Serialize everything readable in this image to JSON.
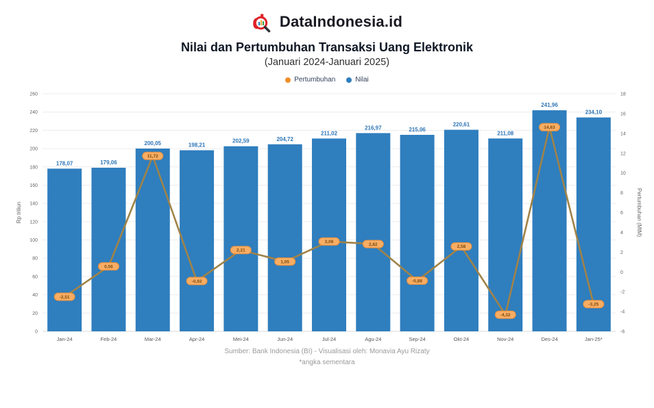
{
  "header": {
    "brand": "DataIndonesia.id",
    "title": "Nilai dan Pertumbuhan Transaksi Uang Elektronik",
    "subtitle": "(Januari 2024-Januari 2025)"
  },
  "legend": [
    {
      "label": "Pertumbuhan",
      "color": "#f28e2b"
    },
    {
      "label": "Nilai",
      "color": "#2f7ebe"
    }
  ],
  "colors": {
    "bar": "#2f7ebe",
    "bar_label": "#2e75b6",
    "line": "#a08348",
    "marker_fill": "#f9ad63",
    "marker_stroke": "#e88f3c",
    "marker_text": "#7a4d12",
    "axis_text": "#666666",
    "grid": "#ececec",
    "baseline": "#d9d9d9",
    "brand_red": "#e02127"
  },
  "chart_data": {
    "type": "bar",
    "subtype": "bar+line dual-axis",
    "categories": [
      "Jan-24",
      "Feb-24",
      "Mar-24",
      "Apr-24",
      "Mei-24",
      "Jun-24",
      "Jul-24",
      "Agu-24",
      "Sep-24",
      "Okt-24",
      "Nov-24",
      "Des-24",
      "Jan-25*"
    ],
    "series": [
      {
        "name": "Nilai",
        "type": "bar",
        "axis": "left",
        "unit": "Rp triliun",
        "values": [
          178.07,
          179.06,
          200.05,
          198.21,
          202.59,
          204.72,
          211.02,
          216.97,
          215.06,
          220.61,
          211.08,
          241.96,
          234.1
        ],
        "labels": [
          "178,07",
          "179,06",
          "200,05",
          "198,21",
          "202,59",
          "204,72",
          "211,02",
          "216,97",
          "215,06",
          "220,61",
          "211,08",
          "241,96",
          "234,10"
        ]
      },
      {
        "name": "Pertumbuhan",
        "type": "line",
        "axis": "right",
        "unit": "% (MtM)",
        "values": [
          -2.51,
          0.56,
          11.72,
          -0.92,
          2.21,
          1.05,
          3.08,
          2.82,
          -0.88,
          2.58,
          -4.32,
          14.63,
          -3.25
        ],
        "labels": [
          "-2,51",
          "0,56",
          "11,72",
          "-0,92",
          "2,21",
          "1,05",
          "3,08",
          "2,82",
          "-0,88",
          "2,58",
          "-4,32",
          "14,63",
          "-3,25"
        ]
      }
    ],
    "left_axis": {
      "label": "Rp triliun",
      "min": 0,
      "max": 260,
      "step": 20
    },
    "right_axis": {
      "label": "Pertumbuhan (MtM)",
      "min": -6,
      "max": 18,
      "step": 2
    },
    "grid": true,
    "legend_position": "top"
  },
  "footer": {
    "source": "Sumber: Bank Indonesia (BI) - Visualisasi oleh: Monavia Ayu Rizaty",
    "note": "*angka sementara"
  }
}
